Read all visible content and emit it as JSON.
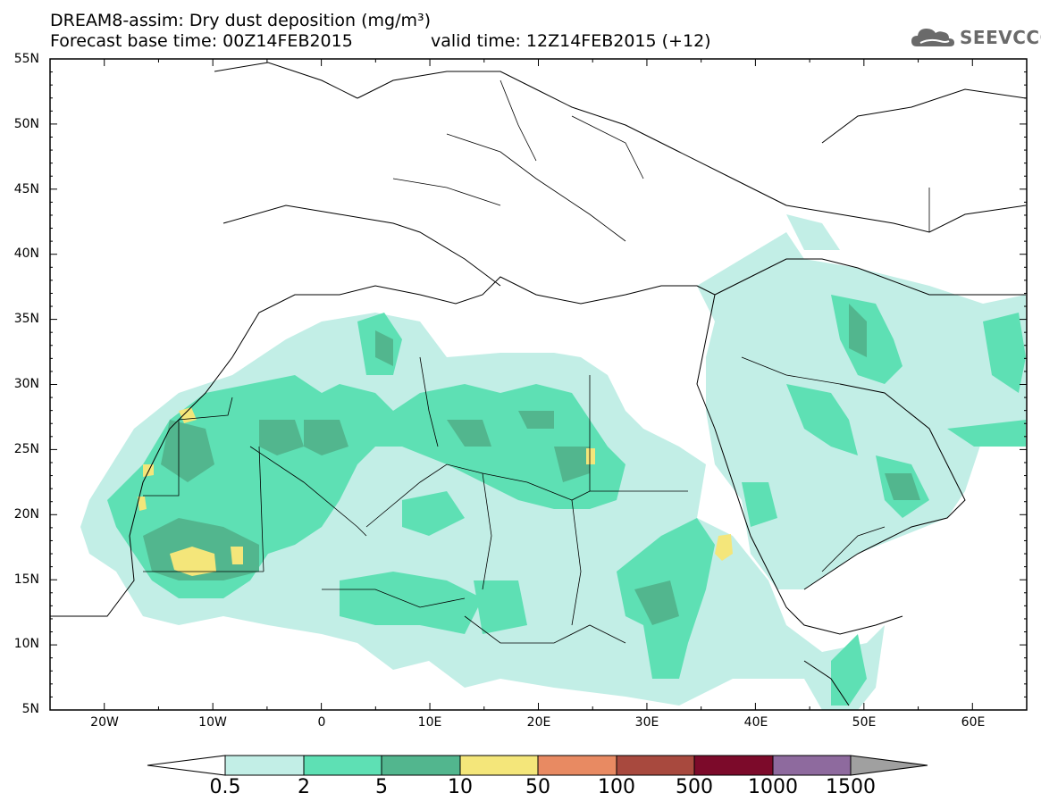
{
  "header": {
    "title": "DREAM8-assim: Dry dust deposition (mg/m³)",
    "subtitle": "Forecast base time: 00Z14FEB2015",
    "valid_time": "valid time: 12Z14FEB2015 (+12)",
    "logo_text": "SEEVCCC",
    "logo_icon": "cloud-icon"
  },
  "chart_data": {
    "type": "heatmap",
    "title": "DREAM8-assim: Dry dust deposition (mg/m³)",
    "xlim": [
      -25,
      65
    ],
    "ylim": [
      5,
      55
    ],
    "x_ticks": [
      "20W",
      "10W",
      "0",
      "10E",
      "20E",
      "30E",
      "40E",
      "50E",
      "60E"
    ],
    "y_ticks": [
      "55N",
      "50N",
      "45N",
      "40N",
      "35N",
      "30N",
      "25N",
      "20N",
      "15N",
      "10N",
      "5N"
    ],
    "colorbar": {
      "labels": [
        "0.5",
        "2",
        "5",
        "10",
        "50",
        "100",
        "500",
        "1000",
        "1500"
      ],
      "colors": [
        "#c2eee6",
        "#5ee0b4",
        "#52b68e",
        "#f4e67a",
        "#e88a62",
        "#a8493e",
        "#7c0a2a",
        "#8e6a9e",
        "#a0a0a0"
      ]
    }
  },
  "map": {
    "background": "#ffffff",
    "level_colors": [
      "#c2eee6",
      "#5ee0b4",
      "#52b68e",
      "#f4e67a"
    ]
  }
}
